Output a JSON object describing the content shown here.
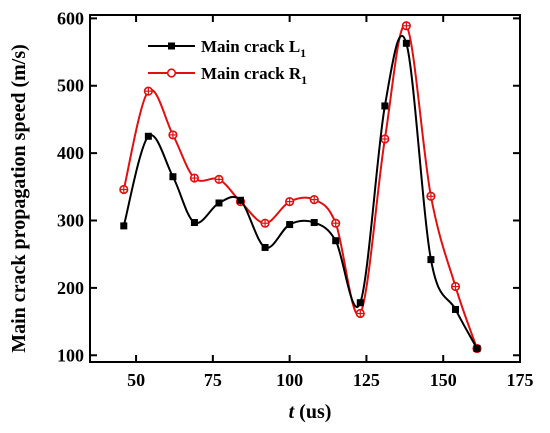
{
  "chart_data": {
    "type": "line",
    "xlabel": {
      "italic": "t",
      "rest": " (us)"
    },
    "ylabel": "Main crack propagation speed (m/s)",
    "xlim": [
      35,
      175
    ],
    "ylim": [
      90,
      605
    ],
    "xticks": [
      50,
      75,
      100,
      125,
      150,
      175
    ],
    "yticks": [
      100,
      200,
      300,
      400,
      500,
      600
    ],
    "grid": false,
    "legend_position": "top-left",
    "series": [
      {
        "name": "Main crack L",
        "name_sub": "1",
        "color": "#000000",
        "marker": "square",
        "x": [
          46,
          54,
          62,
          69,
          77,
          84,
          92,
          100,
          108,
          115,
          123,
          131,
          138,
          146,
          154,
          161
        ],
        "y": [
          292,
          425,
          365,
          297,
          326,
          330,
          260,
          294,
          297,
          270,
          178,
          470,
          563,
          242,
          168,
          110
        ]
      },
      {
        "name": "Main crack R",
        "name_sub": "1",
        "color": "#e01010",
        "marker": "circle-cross",
        "x": [
          46,
          54,
          62,
          69,
          77,
          84,
          92,
          100,
          108,
          115,
          123,
          131,
          138,
          146,
          154,
          161
        ],
        "y": [
          346,
          492,
          427,
          363,
          361,
          328,
          296,
          328,
          331,
          296,
          162,
          421,
          589,
          336,
          202,
          110
        ]
      }
    ]
  }
}
